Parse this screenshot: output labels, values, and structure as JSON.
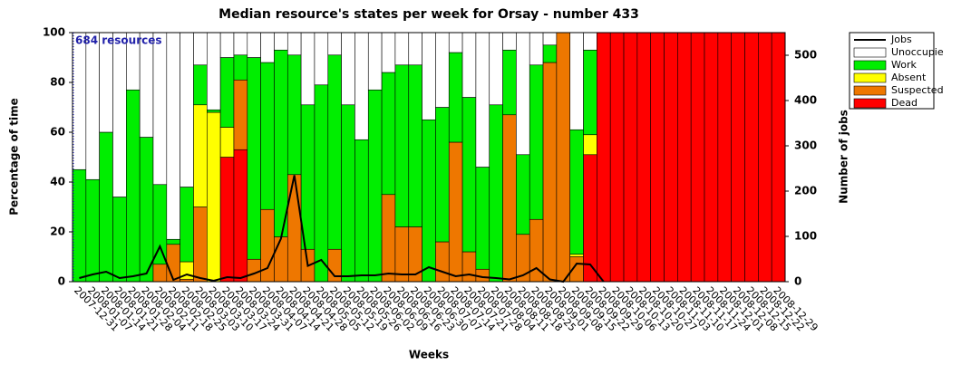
{
  "chart_data": {
    "type": "bar",
    "stacked": true,
    "title": "Median resource's states per week for Orsay - number 433",
    "xlabel": "Weeks",
    "ylabel": "Percentage of time",
    "y2label": "Number of jobs",
    "annotation": "684 resources",
    "categories": [
      "2007-12-31",
      "2008-01-07",
      "2008-01-14",
      "2008-01-21",
      "2008-01-28",
      "2008-02-04",
      "2008-02-11",
      "2008-02-18",
      "2008-02-25",
      "2008-03-03",
      "2008-03-10",
      "2008-03-17",
      "2008-03-24",
      "2008-03-31",
      "2008-04-07",
      "2008-04-14",
      "2008-04-21",
      "2008-04-28",
      "2008-05-05",
      "2008-05-12",
      "2008-05-19",
      "2008-05-26",
      "2008-06-02",
      "2008-06-09",
      "2008-06-16",
      "2008-06-23",
      "2008-06-30",
      "2008-07-07",
      "2008-07-14",
      "2008-07-21",
      "2008-07-28",
      "2008-08-04",
      "2008-08-11",
      "2008-08-18",
      "2008-08-25",
      "2008-09-01",
      "2008-09-08",
      "2008-09-15",
      "2008-09-22",
      "2008-09-29",
      "2008-10-06",
      "2008-10-13",
      "2008-10-20",
      "2008-10-27",
      "2008-11-03",
      "2008-11-10",
      "2008-11-17",
      "2008-11-24",
      "2008-12-01",
      "2008-12-08",
      "2008-12-15",
      "2008-12-22",
      "2008-12-29"
    ],
    "ylim": [
      0,
      100
    ],
    "yticks": [
      0,
      20,
      40,
      60,
      80,
      100
    ],
    "y2lim": [
      0,
      550
    ],
    "y2ticks": [
      0,
      100,
      200,
      300,
      400,
      500
    ],
    "series": [
      {
        "name": "Jobs",
        "type": "line",
        "axis": "y2",
        "color": "#000000",
        "values": [
          8,
          16,
          22,
          8,
          12,
          18,
          78,
          4,
          16,
          8,
          2,
          10,
          8,
          18,
          30,
          95,
          235,
          35,
          48,
          12,
          12,
          14,
          14,
          18,
          16,
          16,
          32,
          22,
          12,
          16,
          10,
          8,
          5,
          14,
          30,
          5,
          0,
          40,
          38,
          0,
          null,
          null,
          null,
          null,
          null,
          null,
          null,
          null,
          null,
          null,
          null,
          null,
          null
        ]
      },
      {
        "name": "Unoccupie",
        "color": "#ffffff",
        "values": [
          55,
          59,
          40,
          66,
          23,
          42,
          61,
          83,
          62,
          13,
          31,
          10,
          9,
          10,
          12,
          7,
          9,
          29,
          21,
          9,
          29,
          43,
          23,
          16,
          13,
          13,
          35,
          30,
          8,
          26,
          54,
          29,
          7,
          49,
          13,
          5,
          0,
          39,
          7,
          0,
          0,
          0,
          0,
          0,
          0,
          0,
          0,
          0,
          0,
          0,
          0,
          0,
          0
        ]
      },
      {
        "name": "Work",
        "color": "#00ee00",
        "values": [
          45,
          41,
          60,
          34,
          77,
          58,
          32,
          2,
          30,
          16,
          1,
          28,
          10,
          81,
          59,
          75,
          48,
          58,
          79,
          78,
          71,
          57,
          77,
          49,
          65,
          65,
          65,
          54,
          36,
          62,
          41,
          71,
          26,
          32,
          62,
          7,
          0,
          50,
          34,
          0,
          0,
          0,
          0,
          0,
          0,
          0,
          0,
          0,
          0,
          0,
          0,
          0,
          0
        ]
      },
      {
        "name": "Absent",
        "color": "#ffff00",
        "values": [
          0,
          0,
          0,
          0,
          0,
          0,
          0,
          0,
          7,
          41,
          68,
          12,
          0,
          0,
          0,
          0,
          0,
          0,
          0,
          0,
          0,
          0,
          0,
          0,
          0,
          0,
          0,
          0,
          0,
          0,
          0,
          0,
          0,
          0,
          0,
          0,
          0,
          1,
          8,
          0,
          0,
          0,
          0,
          0,
          0,
          0,
          0,
          0,
          0,
          0,
          0,
          0,
          0
        ]
      },
      {
        "name": "Suspected",
        "color": "#ee7700",
        "values": [
          0,
          0,
          0,
          0,
          0,
          0,
          7,
          15,
          1,
          30,
          0,
          0,
          28,
          9,
          29,
          18,
          43,
          13,
          0,
          13,
          0,
          0,
          0,
          35,
          22,
          22,
          0,
          16,
          56,
          12,
          5,
          0,
          67,
          19,
          25,
          88,
          100,
          10,
          0,
          0,
          0,
          0,
          0,
          0,
          0,
          0,
          0,
          0,
          0,
          0,
          0,
          0,
          0
        ]
      },
      {
        "name": "Dead",
        "color": "#ff0000",
        "values": [
          0,
          0,
          0,
          0,
          0,
          0,
          0,
          0,
          0,
          0,
          0,
          50,
          53,
          0,
          0,
          0,
          0,
          0,
          0,
          0,
          0,
          0,
          0,
          0,
          0,
          0,
          0,
          0,
          0,
          0,
          0,
          0,
          0,
          0,
          0,
          0,
          0,
          0,
          51,
          100,
          100,
          100,
          100,
          100,
          100,
          100,
          100,
          100,
          100,
          100,
          100,
          100,
          100
        ]
      }
    ]
  }
}
